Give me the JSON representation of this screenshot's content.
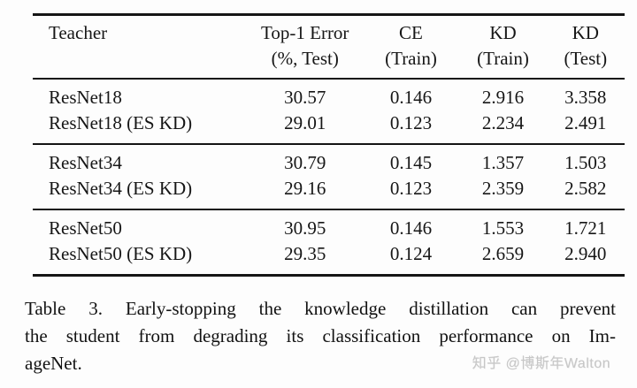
{
  "table": {
    "headers": [
      {
        "line1": "Teacher",
        "line2": ""
      },
      {
        "line1": "Top-1 Error",
        "line2": "(%, Test)"
      },
      {
        "line1": "CE",
        "line2": "(Train)"
      },
      {
        "line1": "KD",
        "line2": "(Train)"
      },
      {
        "line1": "KD",
        "line2": "(Test)"
      }
    ],
    "groups": [
      {
        "rows": [
          {
            "teacher": "ResNet18",
            "top1_error": "30.57",
            "ce_train": "0.146",
            "kd_train": "2.916",
            "kd_test": "3.358"
          },
          {
            "teacher": "ResNet18 (ES KD)",
            "top1_error": "29.01",
            "ce_train": "0.123",
            "kd_train": "2.234",
            "kd_test": "2.491"
          }
        ]
      },
      {
        "rows": [
          {
            "teacher": "ResNet34",
            "top1_error": "30.79",
            "ce_train": "0.145",
            "kd_train": "1.357",
            "kd_test": "1.503"
          },
          {
            "teacher": "ResNet34 (ES KD)",
            "top1_error": "29.16",
            "ce_train": "0.123",
            "kd_train": "2.359",
            "kd_test": "2.582"
          }
        ]
      },
      {
        "rows": [
          {
            "teacher": "ResNet50",
            "top1_error": "30.95",
            "ce_train": "0.146",
            "kd_train": "1.553",
            "kd_test": "1.721"
          },
          {
            "teacher": "ResNet50 (ES KD)",
            "top1_error": "29.35",
            "ce_train": "0.124",
            "kd_train": "2.659",
            "kd_test": "2.940"
          }
        ]
      }
    ]
  },
  "caption": {
    "full": "Table 3. Early-stopping the knowledge distillation can prevent the student from degrading its classification performance on ImageNet.",
    "lines": [
      "Table 3. Early-stopping the knowledge distillation can prevent",
      "the student from degrading its classification performance on Im-",
      "ageNet."
    ]
  },
  "watermark": {
    "text": "知乎 @博斯年Walton",
    "color": "#c7c7c7"
  },
  "colors": {
    "text": "#161616",
    "rule": "#151515",
    "background": "#fdfdfd"
  }
}
